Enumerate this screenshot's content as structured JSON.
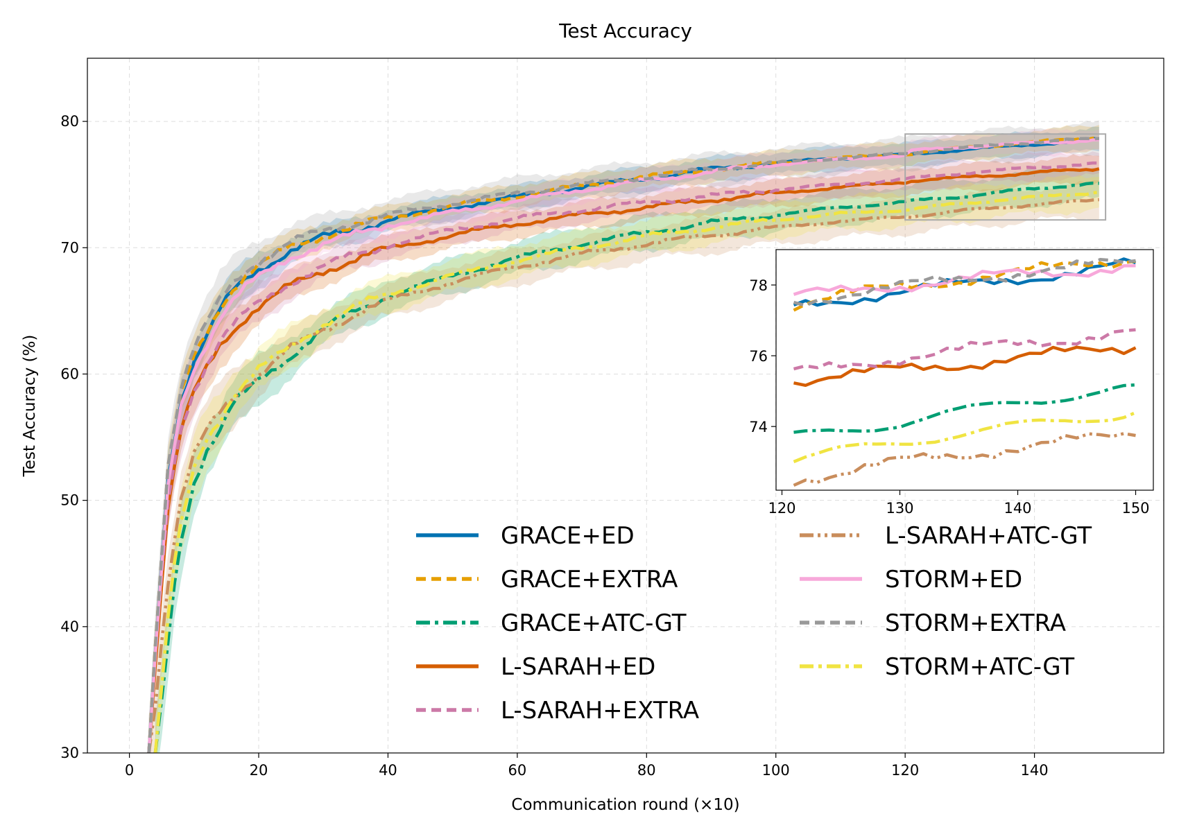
{
  "chart_data": {
    "type": "line",
    "title": "Test Accuracy",
    "xlabel": "Communication round (×10)",
    "ylabel": "Test Accuracy (%)",
    "xlim": [
      -6.5,
      160
    ],
    "ylim": [
      30,
      85
    ],
    "xticks": [
      0,
      20,
      40,
      60,
      80,
      100,
      120,
      140
    ],
    "yticks": [
      30,
      40,
      50,
      60,
      70,
      80
    ],
    "grid": true,
    "legend_position": "lower-right",
    "series": [
      {
        "name": "GRACE+ED",
        "color": "#0072B2",
        "dash": "solid",
        "band": 0.9,
        "x": [
          3,
          4,
          5,
          6,
          7,
          8,
          10,
          12,
          14,
          16,
          18,
          20,
          25,
          30,
          35,
          40,
          50,
          60,
          70,
          80,
          90,
          100,
          110,
          120,
          121,
          125,
          130,
          135,
          140,
          145,
          150
        ],
        "y": [
          30,
          38,
          45,
          52,
          55,
          58,
          61,
          63,
          65,
          66.5,
          67.5,
          68.3,
          69.8,
          70.8,
          71.5,
          72.2,
          73.2,
          74,
          74.8,
          75.5,
          76.2,
          76.7,
          77.1,
          77.35,
          77.4,
          77.6,
          77.8,
          78,
          78.2,
          78.35,
          78.6
        ]
      },
      {
        "name": "GRACE+EXTRA",
        "color": "#E69F00",
        "dash": "dashed",
        "band": 0.9,
        "x": [
          3,
          4,
          5,
          6,
          7,
          8,
          10,
          12,
          14,
          16,
          18,
          20,
          25,
          30,
          35,
          40,
          50,
          60,
          70,
          80,
          90,
          100,
          110,
          120,
          121,
          125,
          130,
          135,
          140,
          145,
          150
        ],
        "y": [
          30,
          38.5,
          45.5,
          52.5,
          55.5,
          58.3,
          61.3,
          63.3,
          65.3,
          66.8,
          67.8,
          68.6,
          70,
          71,
          71.7,
          72.3,
          73.3,
          74.1,
          74.9,
          75.6,
          76.2,
          76.7,
          77.1,
          77.4,
          77.45,
          77.7,
          77.95,
          78.15,
          78.35,
          78.55,
          78.75
        ]
      },
      {
        "name": "GRACE+ATC-GT",
        "color": "#009E73",
        "dash": "dashdot",
        "band": 1.3,
        "x": [
          4,
          5,
          6,
          7,
          8,
          10,
          12,
          14,
          16,
          18,
          20,
          25,
          30,
          35,
          40,
          50,
          60,
          70,
          80,
          90,
          100,
          110,
          120,
          121,
          125,
          130,
          135,
          140,
          145,
          150
        ],
        "y": [
          30,
          34,
          39,
          43.5,
          47,
          51.5,
          54,
          55.5,
          57.5,
          58.5,
          59.5,
          61.5,
          63.5,
          65,
          66.2,
          67.8,
          69.2,
          70.3,
          71.2,
          72,
          72.6,
          73.2,
          73.6,
          73.7,
          73.9,
          74.1,
          74.4,
          74.7,
          74.9,
          75.1
        ]
      },
      {
        "name": "L-SARAH+ED",
        "color": "#D55E00",
        "dash": "solid",
        "band": 1.0,
        "x": [
          3,
          4,
          5,
          6,
          7,
          8,
          10,
          12,
          14,
          16,
          18,
          20,
          25,
          30,
          35,
          40,
          50,
          60,
          70,
          80,
          90,
          100,
          110,
          120,
          121,
          125,
          130,
          135,
          140,
          145,
          150
        ],
        "y": [
          30,
          37,
          43.5,
          49.5,
          52.5,
          55.5,
          58.5,
          60.5,
          62.3,
          63.5,
          64.5,
          65.3,
          67,
          68.2,
          69.1,
          69.9,
          71,
          71.9,
          72.6,
          73.2,
          73.8,
          74.3,
          74.8,
          75.2,
          75.3,
          75.45,
          75.6,
          75.75,
          75.95,
          76.1,
          76.25
        ]
      },
      {
        "name": "L-SARAH+EXTRA",
        "color": "#CC79A7",
        "dash": "dashed",
        "band": 1.0,
        "x": [
          3,
          4,
          5,
          6,
          7,
          8,
          10,
          12,
          14,
          16,
          18,
          20,
          25,
          30,
          35,
          40,
          50,
          60,
          70,
          80,
          90,
          100,
          110,
          120,
          121,
          125,
          130,
          135,
          140,
          145,
          150
        ],
        "y": [
          30,
          37.5,
          44,
          50,
          53,
          55.8,
          58.8,
          60.8,
          62.6,
          63.8,
          64.8,
          65.6,
          67.3,
          68.5,
          69.4,
          70.2,
          71.4,
          72.3,
          73,
          73.6,
          74.1,
          74.6,
          75,
          75.4,
          75.5,
          75.7,
          75.95,
          76.15,
          76.35,
          76.5,
          76.7
        ]
      },
      {
        "name": "L-SARAH+ATC-GT",
        "color": "#C98D5C",
        "dash": "dashdotdot",
        "band": 1.3,
        "x": [
          3,
          4,
          5,
          6,
          7,
          8,
          10,
          12,
          14,
          16,
          18,
          20,
          25,
          30,
          35,
          40,
          50,
          60,
          70,
          80,
          90,
          100,
          110,
          120,
          121,
          125,
          130,
          135,
          140,
          145,
          150
        ],
        "y": [
          30,
          34,
          39,
          43.5,
          47,
          50,
          53.5,
          55.5,
          57,
          58.2,
          59.2,
          60,
          62,
          63.5,
          64.8,
          65.8,
          67.3,
          68.5,
          69.5,
          70.3,
          71,
          71.6,
          72.1,
          72.45,
          72.5,
          72.7,
          73,
          73.2,
          73.4,
          73.6,
          73.8
        ]
      },
      {
        "name": "STORM+ED",
        "color": "#F7A8DA",
        "dash": "solid",
        "band": 0.9,
        "x": [
          3,
          4,
          5,
          6,
          7,
          8,
          10,
          12,
          14,
          16,
          18,
          20,
          25,
          30,
          35,
          40,
          50,
          60,
          70,
          80,
          90,
          100,
          110,
          120,
          121,
          125,
          130,
          135,
          140,
          145,
          150
        ],
        "y": [
          30,
          37.5,
          44.5,
          51,
          54.5,
          57.5,
          60.5,
          62.5,
          64.5,
          65.8,
          66.8,
          67.6,
          69.3,
          70.3,
          71,
          71.8,
          72.8,
          73.7,
          74.6,
          75.3,
          76,
          76.6,
          77,
          77.3,
          77.7,
          77.8,
          78,
          78.15,
          78.3,
          78.4,
          78.55
        ]
      },
      {
        "name": "STORM+EXTRA",
        "color": "#999999",
        "dash": "dashed",
        "band": 1.2,
        "x": [
          3,
          4,
          5,
          6,
          7,
          8,
          10,
          12,
          14,
          16,
          18,
          20,
          25,
          30,
          35,
          40,
          50,
          60,
          70,
          80,
          90,
          100,
          110,
          120,
          121,
          125,
          130,
          135,
          140,
          145,
          150
        ],
        "y": [
          30,
          38.5,
          46,
          53,
          56,
          59,
          62,
          64,
          65.8,
          67.2,
          68.2,
          69,
          70.4,
          71.3,
          72,
          72.6,
          73.5,
          74.3,
          75,
          75.6,
          76.2,
          76.7,
          77.1,
          77.45,
          77.5,
          77.75,
          77.95,
          78.15,
          78.35,
          78.5,
          78.65
        ]
      },
      {
        "name": "STORM+ATC-GT",
        "color": "#F0E442",
        "dash": "dashdot",
        "band": 1.3,
        "x": [
          4,
          5,
          6,
          7,
          8,
          10,
          12,
          14,
          16,
          18,
          20,
          25,
          30,
          35,
          40,
          50,
          60,
          70,
          80,
          90,
          100,
          110,
          120,
          121,
          125,
          130,
          135,
          140,
          145,
          150
        ],
        "y": [
          30,
          35,
          40.5,
          45,
          48,
          52.5,
          55,
          56.5,
          58.3,
          59.3,
          60.3,
          62.2,
          64,
          65.3,
          66.3,
          67.8,
          69,
          70,
          70.9,
          71.6,
          72.2,
          72.7,
          73,
          73.05,
          73.3,
          73.55,
          73.8,
          74,
          74.2,
          74.4
        ]
      }
    ],
    "inset": {
      "xlim": [
        119.5,
        151.5
      ],
      "ylim": [
        72.2,
        79.0
      ],
      "xticks": [
        120,
        130,
        140,
        150
      ],
      "yticks": [
        74,
        76,
        78
      ],
      "zoom_x": [
        120,
        151
      ],
      "zoom_y": [
        72.2,
        79.0
      ]
    }
  }
}
